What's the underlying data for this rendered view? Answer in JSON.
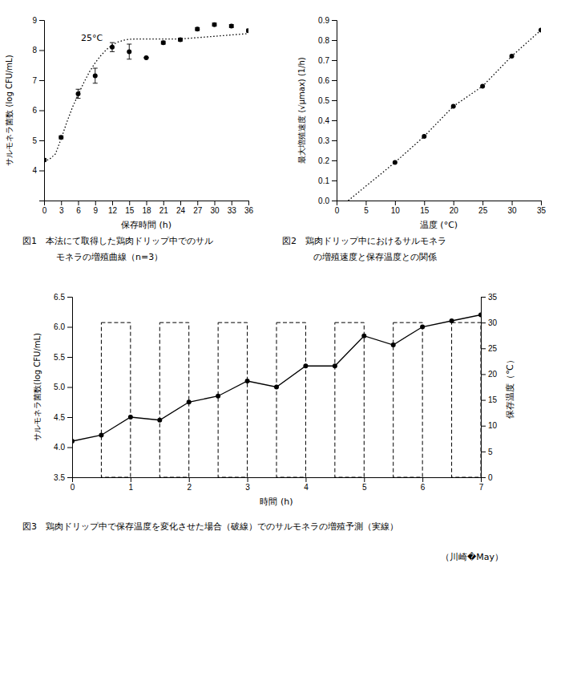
{
  "chart_data": [
    {
      "type": "line",
      "title": "25°C",
      "xlabel": "保存時間 (h)",
      "ylabel": "サルモネラ菌数 (log CFU/mL)",
      "xlim": [
        0,
        36
      ],
      "ylim": [
        3,
        9
      ],
      "xticks": [
        0,
        3,
        6,
        9,
        12,
        15,
        18,
        21,
        24,
        27,
        30,
        33,
        36
      ],
      "yticks": [
        4,
        5,
        6,
        7,
        8,
        9
      ],
      "series": [
        {
          "type": "line",
          "line_style": "dotted",
          "color": "#000000",
          "x": [
            0,
            1,
            2,
            3,
            4,
            5,
            6,
            7,
            8,
            9,
            10,
            11,
            12,
            13,
            14,
            15,
            16,
            17,
            18,
            19,
            20,
            21,
            22,
            23,
            24,
            36
          ],
          "values": [
            4.3,
            4.38,
            4.55,
            5.05,
            5.6,
            6.1,
            6.52,
            6.92,
            7.28,
            7.58,
            7.82,
            8.02,
            8.17,
            8.27,
            8.33,
            8.36,
            8.37,
            8.37,
            8.37,
            8.37,
            8.37,
            8.37,
            8.37,
            8.37,
            8.37,
            8.55
          ]
        },
        {
          "type": "scatter",
          "marker": "circle",
          "color": "#000000",
          "x": [
            0,
            3,
            6,
            9,
            12,
            15,
            18,
            21,
            24,
            27,
            30,
            33,
            36
          ],
          "values": [
            4.35,
            5.1,
            6.55,
            7.15,
            8.1,
            7.95,
            7.75,
            8.25,
            8.35,
            8.7,
            8.85,
            8.8,
            8.65
          ],
          "errors": [
            0.05,
            0.05,
            0.15,
            0.25,
            0.15,
            0.25,
            0.0,
            0.05,
            0.05,
            0.05,
            0.05,
            0.05,
            0.05
          ]
        }
      ],
      "annotations": [
        "図1　本法にて取得した鶏肉ドリップ中でのサル",
        "モネラの増殖曲線（n=3）"
      ]
    },
    {
      "type": "line",
      "xlabel": "温度 (°C)",
      "ylabel": "最大増殖速度 (√μmax) (1/h)",
      "xlim": [
        0,
        35
      ],
      "ylim": [
        0,
        0.9
      ],
      "xticks": [
        0,
        5,
        10,
        15,
        20,
        25,
        30,
        35
      ],
      "yticks": [
        {
          "value": 0,
          "label": "0.0"
        },
        0.1,
        0.2,
        0.3,
        0.4,
        0.5,
        0.6,
        0.7,
        0.8,
        0.9
      ],
      "series": [
        {
          "type": "line",
          "line_style": "dotted",
          "color": "#000000",
          "x": [
            2.0,
            10,
            15,
            20,
            25,
            30,
            35
          ],
          "values": [
            0.0,
            0.19,
            0.32,
            0.47,
            0.57,
            0.72,
            0.85
          ]
        },
        {
          "type": "scatter",
          "marker": "circle",
          "color": "#000000",
          "x": [
            10,
            15,
            20,
            25,
            30,
            35
          ],
          "values": [
            0.19,
            0.32,
            0.47,
            0.57,
            0.72,
            0.85
          ]
        }
      ],
      "annotations": [
        "図2　鶏肉ドリップ中におけるサルモネラ",
        "の増殖速度と保存温度との関係"
      ]
    },
    {
      "type": "line",
      "xlabel": "時間 (h)",
      "ylabel": "サルモネラ菌数(log CFU/mL)",
      "y2label": "保存温度（℃）",
      "xlim": [
        0,
        7
      ],
      "ylim": [
        3.5,
        6.5
      ],
      "y2lim": [
        0,
        35
      ],
      "xticks": [
        0,
        1,
        2,
        3,
        4,
        5,
        6,
        7
      ],
      "yticks": [
        3.5,
        {
          "value": 4.0,
          "label": "4.0"
        },
        4.5,
        {
          "value": 5.0,
          "label": "5.0"
        },
        5.5,
        {
          "value": 6.0,
          "label": "6.0"
        },
        6.5
      ],
      "y2ticks": [
        0,
        5,
        10,
        15,
        20,
        25,
        30,
        35
      ],
      "series": [
        {
          "type": "line",
          "line_style": "solid",
          "marker": "circle",
          "color": "#000000",
          "x": [
            0,
            0.5,
            1.0,
            1.5,
            2.0,
            2.5,
            3.0,
            3.5,
            4.0,
            4.5,
            5.0,
            5.5,
            6.0,
            6.5,
            7.0
          ],
          "values": [
            4.1,
            4.2,
            4.5,
            4.45,
            4.75,
            4.85,
            5.1,
            5.0,
            5.35,
            5.35,
            5.85,
            5.7,
            6.0,
            6.1,
            6.2
          ]
        },
        {
          "type": "rect",
          "axis": "y2",
          "line_style": "dashed",
          "color": "#000000",
          "x0": [
            0.5,
            1.5,
            2.5,
            3.5,
            4.5,
            5.5,
            6.5
          ],
          "x1": [
            1.0,
            2.0,
            3.0,
            4.0,
            5.0,
            6.0,
            7.0
          ],
          "y0": [
            0,
            0,
            0,
            0,
            0,
            0,
            0
          ],
          "y1": [
            30,
            30,
            30,
            30,
            30,
            30,
            30
          ]
        }
      ],
      "annotations": [
        "図3　鶏肉ドリップ中で保存温度を変化させた場合（破線）でのサルモネラの増殖予測（実線）",
        "（川崎�May）"
      ]
    }
  ]
}
